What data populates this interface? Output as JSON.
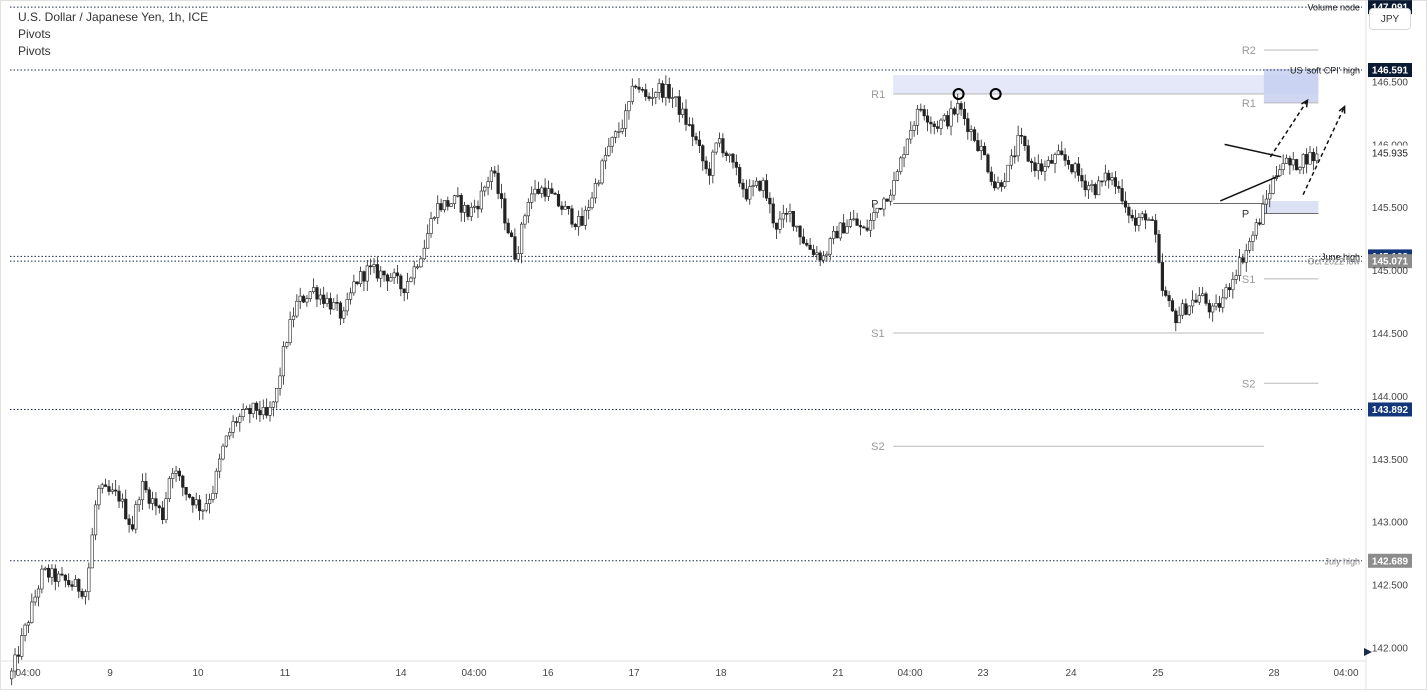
{
  "header": {
    "title": "U.S. Dollar / Japanese Yen, 1h, ICE",
    "indicator_1": "Pivots",
    "indicator_2": "Pivots",
    "currency_button": "JPY"
  },
  "chart_data": {
    "type": "candlestick",
    "instrument": "U.S. Dollar / Japanese Yen",
    "timeframe": "1h",
    "exchange": "ICE",
    "ylim": [
      141.9,
      147.1
    ],
    "price_ticks": [
      142.0,
      142.5,
      143.0,
      143.5,
      144.0,
      144.5,
      145.0,
      145.5,
      146.0,
      146.5,
      147.0
    ],
    "x_ticks": [
      "04:00",
      "9",
      "10",
      "11",
      "14",
      "04:00",
      "16",
      "17",
      "18",
      "21",
      "04:00",
      "23",
      "24",
      "25",
      "28",
      "04:00"
    ],
    "path": [
      [
        0,
        141.75
      ],
      [
        1.5,
        142.6
      ],
      [
        3.5,
        142.45
      ],
      [
        4,
        143.25
      ],
      [
        5,
        143.2
      ],
      [
        5.6,
        142.95
      ],
      [
        6,
        143.3
      ],
      [
        7,
        143.05
      ],
      [
        7.4,
        143.45
      ],
      [
        8,
        143.25
      ],
      [
        8.8,
        143.1
      ],
      [
        9.3,
        143.25
      ],
      [
        9.8,
        143.6
      ],
      [
        10.3,
        143.8
      ],
      [
        11.3,
        143.9
      ],
      [
        11.8,
        143.82
      ],
      [
        12.2,
        144.0
      ],
      [
        12.6,
        144.4
      ],
      [
        13.1,
        144.72
      ],
      [
        13.9,
        144.85
      ],
      [
        14.8,
        144.72
      ],
      [
        15.3,
        144.62
      ],
      [
        15.8,
        144.9
      ],
      [
        16.4,
        145.0
      ],
      [
        17.5,
        144.95
      ],
      [
        18,
        144.85
      ],
      [
        18.5,
        145.0
      ],
      [
        19,
        145.2
      ],
      [
        19.5,
        145.5
      ],
      [
        20.5,
        145.55
      ],
      [
        21,
        145.45
      ],
      [
        21.5,
        145.55
      ],
      [
        22.1,
        145.8
      ],
      [
        22.8,
        145.35
      ],
      [
        23.2,
        145.1
      ],
      [
        23.8,
        145.6
      ],
      [
        24.5,
        145.65
      ],
      [
        25,
        145.55
      ],
      [
        25.6,
        145.45
      ],
      [
        26.2,
        145.35
      ],
      [
        26.8,
        145.65
      ],
      [
        27.4,
        145.95
      ],
      [
        28.2,
        146.2
      ],
      [
        28.7,
        146.5
      ],
      [
        29.2,
        146.35
      ],
      [
        29.7,
        146.45
      ],
      [
        30.3,
        146.4
      ],
      [
        30.8,
        146.25
      ],
      [
        31.4,
        146.05
      ],
      [
        32,
        145.75
      ],
      [
        32.5,
        146.05
      ],
      [
        33.2,
        145.8
      ],
      [
        33.8,
        145.6
      ],
      [
        34.5,
        145.7
      ],
      [
        35.1,
        145.35
      ],
      [
        35.8,
        145.45
      ],
      [
        36.5,
        145.2
      ],
      [
        37.3,
        145.1
      ],
      [
        37.9,
        145.3
      ],
      [
        38.6,
        145.4
      ],
      [
        39.2,
        145.3
      ],
      [
        39.8,
        145.5
      ],
      [
        40.6,
        145.7
      ],
      [
        41.2,
        146.1
      ],
      [
        41.8,
        146.3
      ],
      [
        42.4,
        146.15
      ],
      [
        43,
        146.2
      ],
      [
        43.5,
        146.3
      ],
      [
        44.1,
        146.1
      ],
      [
        44.7,
        145.9
      ],
      [
        45.2,
        145.65
      ],
      [
        45.8,
        145.8
      ],
      [
        46.3,
        146.05
      ],
      [
        46.8,
        145.85
      ],
      [
        47.4,
        145.8
      ],
      [
        48,
        145.9
      ],
      [
        48.6,
        145.85
      ],
      [
        49.2,
        145.7
      ],
      [
        49.8,
        145.65
      ],
      [
        50.4,
        145.75
      ],
      [
        51,
        145.6
      ],
      [
        51.6,
        145.35
      ],
      [
        52.1,
        145.45
      ],
      [
        52.5,
        145.3
      ],
      [
        52.8,
        144.85
      ],
      [
        53.4,
        144.62
      ],
      [
        54,
        144.72
      ],
      [
        54.6,
        144.8
      ],
      [
        55.2,
        144.65
      ],
      [
        55.7,
        144.8
      ],
      [
        56.2,
        145.0
      ],
      [
        56.8,
        145.2
      ],
      [
        57.3,
        145.4
      ],
      [
        57.8,
        145.65
      ],
      [
        58.3,
        145.88
      ],
      [
        58.8,
        145.82
      ],
      [
        59.4,
        145.9
      ],
      [
        60,
        145.9
      ]
    ],
    "pivot_levels": [
      {
        "label": "R2",
        "x_from": 57.5,
        "x_to": 60,
        "value": 146.75
      },
      {
        "label": "R1",
        "x_from": 40.5,
        "x_to": 57.5,
        "value": 146.4
      },
      {
        "label": "P",
        "x_from": 40.5,
        "x_to": 57.5,
        "value": 145.53
      },
      {
        "label": "S1",
        "x_from": 40.5,
        "x_to": 57.5,
        "value": 144.5
      },
      {
        "label": "S2",
        "x_from": 40.5,
        "x_to": 57.5,
        "value": 143.6
      },
      {
        "label": "R1",
        "x_from": 57.5,
        "x_to": 60,
        "value": 146.33
      },
      {
        "label": "P",
        "x_from": 57.5,
        "x_to": 60,
        "value": 145.45
      },
      {
        "label": "S1",
        "x_from": 57.5,
        "x_to": 60,
        "value": 144.93
      },
      {
        "label": "S2",
        "x_from": 57.5,
        "x_to": 60,
        "value": 144.1
      }
    ],
    "horizontal_lines": [
      {
        "label": "Volume node",
        "value": 147.091,
        "price_tag": "147.091",
        "tag_color": "#0b1a33"
      },
      {
        "label": "US 'soft CPI' high",
        "value": 146.591,
        "price_tag": "146.591",
        "tag_color": "#0b1a33"
      },
      {
        "label": "June high",
        "value": 145.109,
        "price_tag": "145.109",
        "tag_color": "#13357a"
      },
      {
        "label": "Oct 2022 low",
        "value": 145.071,
        "price_tag": "145.071",
        "tag_color": "#8c8c8c"
      },
      {
        "label": "",
        "value": 143.892,
        "price_tag": "143.892",
        "tag_color": "#13357a"
      },
      {
        "label": "July high",
        "value": 142.689,
        "price_tag": "142.689",
        "tag_color": "#8c8c8c"
      }
    ],
    "last_price": "145.935",
    "zones": [
      {
        "x_from": 40.5,
        "x_to": 60,
        "y_from": 146.4,
        "y_to": 146.55,
        "color": "#dfe4f7"
      },
      {
        "x_from": 57.5,
        "x_to": 60,
        "y_from": 146.33,
        "y_to": 146.6,
        "color": "#c5cff0"
      },
      {
        "x_from": 57.5,
        "x_to": 60,
        "y_from": 145.45,
        "y_to": 145.55,
        "color": "#d6dcf2"
      }
    ],
    "markers": [
      {
        "type": "circle",
        "x": 43.5,
        "value": 146.4
      },
      {
        "type": "circle",
        "x": 45.2,
        "value": 146.4
      }
    ],
    "trendlines": [
      {
        "from": [
          55.7,
          146.0
        ],
        "to": [
          58.3,
          145.9
        ]
      },
      {
        "from": [
          55.5,
          145.55
        ],
        "to": [
          58.2,
          145.75
        ]
      }
    ],
    "arrows": [
      {
        "from": [
          57.8,
          145.9
        ],
        "to": [
          59.5,
          146.35
        ]
      },
      {
        "from": [
          59.3,
          145.6
        ],
        "to": [
          61.2,
          146.3
        ]
      }
    ]
  }
}
